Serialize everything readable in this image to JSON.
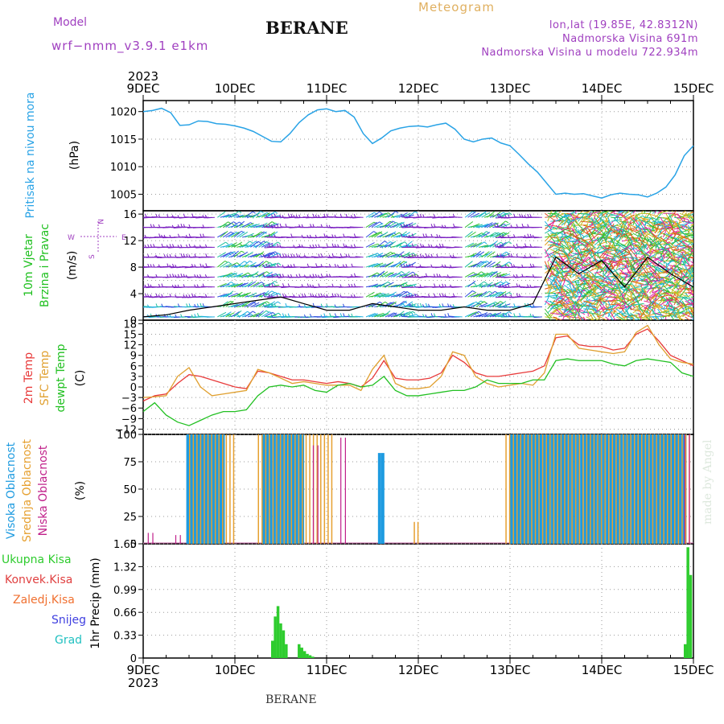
{
  "header": {
    "model_label": "Model",
    "model_name": "wrf−nmm_v3.9.1  e1km",
    "station": "BERANE",
    "meteogram": "Meteogram",
    "lonlat": "lon,lat (19.85E, 42.8312N)",
    "altitude": "Nadmorska Visina 691m",
    "model_altitude": "Nadmorska Visina u modelu 722.934m"
  },
  "footer": {
    "station": "BERANE",
    "credit": "made by Angel"
  },
  "colors": {
    "pressure": "#29a3e6",
    "temp2m": "#e83a3a",
    "sfc": "#e0a030",
    "dewpt": "#22c022",
    "high_cloud": "#1e9be0",
    "mid_cloud": "#e6a030",
    "low_cloud": "#c0208a",
    "precip": "#2ecc2e",
    "model_text": "#a040c0",
    "meteogram_text": "#e0b060",
    "wind_text": "#20c020",
    "snow": "#4040e0",
    "hail": "#20c0c0",
    "conv": "#e04040",
    "frozen": "#f07030"
  },
  "time_axis": {
    "top_year": "2023",
    "bottom_year": "2023",
    "ticks": [
      "9DEC",
      "10DEC",
      "11DEC",
      "12DEC",
      "13DEC",
      "14DEC",
      "15DEC"
    ]
  },
  "chart_data": [
    {
      "type": "line",
      "panel": "pressure",
      "ylabel_lines": [
        "Pritisak na nivou mora"
      ],
      "unit": "(hPa)",
      "ylim": [
        1002,
        1022
      ],
      "yticks": [
        "1005",
        "1010",
        "1015",
        "1020"
      ],
      "x": [
        9.0,
        9.1,
        9.2,
        9.3,
        9.4,
        9.5,
        9.6,
        9.7,
        9.8,
        9.9,
        10.0,
        10.1,
        10.2,
        10.3,
        10.4,
        10.5,
        10.6,
        10.7,
        10.8,
        10.9,
        11.0,
        11.1,
        11.2,
        11.3,
        11.4,
        11.5,
        11.6,
        11.7,
        11.8,
        11.9,
        12.0,
        12.1,
        12.2,
        12.3,
        12.4,
        12.5,
        12.6,
        12.7,
        12.8,
        12.9,
        13.0,
        13.1,
        13.2,
        13.3,
        13.4,
        13.5,
        13.6,
        13.7,
        13.8,
        13.9,
        14.0,
        14.1,
        14.2,
        14.3,
        14.4,
        14.5,
        14.6,
        14.7,
        14.8,
        14.9,
        15.0
      ],
      "series": [
        {
          "values": [
            1020,
            1020.2,
            1020.6,
            1019.8,
            1017.5,
            1017.6,
            1018.3,
            1018.2,
            1017.8,
            1017.7,
            1017.4,
            1017.0,
            1016.4,
            1015.5,
            1014.6,
            1014.5,
            1016.0,
            1018.0,
            1019.4,
            1020.3,
            1020.5,
            1020.0,
            1020.2,
            1019.0,
            1016.0,
            1014.2,
            1015.2,
            1016.5,
            1017.0,
            1017.3,
            1017.4,
            1017.2,
            1017.6,
            1017.9,
            1016.8,
            1015.0,
            1014.5,
            1015.0,
            1015.2,
            1014.3,
            1013.8,
            1012.2,
            1010.5,
            1009.0,
            1007.0,
            1005.0,
            1005.2,
            1005.0,
            1005.1,
            1004.7,
            1004.3,
            1004.9,
            1005.2,
            1005.0,
            1004.9,
            1004.5,
            1005.2,
            1006.3,
            1008.5,
            1012.0,
            1013.8
          ]
        }
      ]
    },
    {
      "type": "line",
      "panel": "wind",
      "ylabel_lines": [
        "10m Vjetar",
        "Brzina i Pravac"
      ],
      "unit": "(m/s)",
      "direction_key": [
        "N",
        "E",
        "W",
        "S"
      ],
      "ylim": [
        0,
        16.5
      ],
      "yticks": [
        "0",
        "4",
        "8",
        "12",
        "16"
      ],
      "x": [
        9.0,
        9.25,
        9.5,
        9.75,
        10.0,
        10.25,
        10.5,
        10.75,
        11.0,
        11.25,
        11.5,
        11.75,
        12.0,
        12.25,
        12.5,
        12.75,
        13.0,
        13.25,
        13.5,
        13.75,
        14.0,
        14.25,
        14.5,
        14.75,
        15.0
      ],
      "series": [
        {
          "values": [
            0.5,
            0.8,
            1.5,
            2.0,
            2.5,
            3.0,
            3.5,
            2.5,
            1.5,
            1.5,
            2.5,
            2.0,
            1.5,
            1.5,
            2.0,
            1.5,
            1.5,
            2.5,
            9.5,
            7.0,
            9.0,
            5.0,
            9.5,
            7.0,
            5.0
          ]
        }
      ]
    },
    {
      "type": "line",
      "panel": "temperature",
      "ylabel_lines": [
        "2m Temp",
        "SFC Temp",
        "dewpt Temp"
      ],
      "unit": "(C)",
      "ylim": [
        -12,
        18
      ],
      "yticks": [
        "−12",
        "−9",
        "−6",
        "−3",
        "0",
        "3",
        "6",
        "9",
        "12",
        "15",
        "18"
      ],
      "x": [
        9.0,
        9.125,
        9.25,
        9.375,
        9.5,
        9.625,
        9.75,
        9.875,
        10.0,
        10.125,
        10.25,
        10.375,
        10.5,
        10.625,
        10.75,
        10.875,
        11.0,
        11.125,
        11.25,
        11.375,
        11.5,
        11.625,
        11.75,
        11.875,
        12.0,
        12.125,
        12.25,
        12.375,
        12.5,
        12.625,
        12.75,
        12.875,
        13.0,
        13.125,
        13.25,
        13.375,
        13.5,
        13.625,
        13.75,
        13.875,
        14.0,
        14.125,
        14.25,
        14.375,
        14.5,
        14.625,
        14.75,
        14.875,
        15.0
      ],
      "series": [
        {
          "name": "2m Temp",
          "values": [
            -4,
            -2.5,
            -2,
            1,
            3.5,
            3,
            2,
            1,
            0,
            -0.5,
            4.5,
            4,
            3,
            2,
            2,
            1.5,
            1,
            1.5,
            1,
            0,
            2.5,
            7.5,
            2.5,
            2,
            2,
            2.5,
            4,
            9,
            7,
            4,
            3,
            3,
            3.5,
            4,
            4.5,
            6,
            14,
            14.5,
            12,
            11.5,
            11.5,
            10.5,
            11,
            15,
            16.5,
            13,
            9,
            7.5,
            6
          ]
        },
        {
          "name": "SFC Temp",
          "values": [
            -3,
            -2.8,
            -2.5,
            3,
            5.5,
            0,
            -2.5,
            -2,
            -1.5,
            -1,
            5,
            4,
            2.5,
            1,
            1.5,
            1,
            0.5,
            0.5,
            0.5,
            -1,
            5,
            9,
            1,
            -0.5,
            -0.5,
            0,
            3,
            10,
            9,
            3,
            1,
            0,
            0.5,
            1,
            0.5,
            4,
            15,
            15,
            11,
            10.5,
            10,
            9.5,
            10,
            15.5,
            17.5,
            12,
            8,
            7,
            6.5
          ]
        },
        {
          "name": "dewpt Temp",
          "values": [
            -7,
            -4.5,
            -8,
            -10,
            -11,
            -9.5,
            -8,
            -7,
            -7,
            -6.5,
            -2.5,
            0,
            0.5,
            0,
            0.5,
            -1,
            -1.5,
            0.5,
            1,
            0,
            0.5,
            3,
            -1,
            -2.5,
            -2.5,
            -2,
            -1.5,
            -1,
            -1,
            0,
            2,
            1,
            1,
            1,
            2,
            2,
            7.5,
            8,
            7.5,
            7.5,
            7.5,
            6.5,
            6,
            7.5,
            8,
            7.5,
            7,
            4,
            3
          ]
        }
      ]
    },
    {
      "type": "bar",
      "panel": "cloud",
      "ylabel_lines": [
        "Visoka Oblacnost",
        "Srednja Oblacnost",
        "Niska Oblacnost"
      ],
      "unit": "(%)",
      "ylim": [
        0,
        100
      ],
      "yticks": [
        "0",
        "25",
        "50",
        "75",
        "100"
      ],
      "series": [
        {
          "name": "Visoka Oblacnost",
          "x_ranges": [
            [
              9.47,
              9.88
            ],
            [
              10.3,
              10.72
            ],
            [
              11.56,
              11.6
            ],
            [
              13.0,
              14.92
            ]
          ],
          "values": [
            100,
            100,
            83,
            100
          ]
        },
        {
          "name": "Srednja Oblacnost",
          "x_ranges": [
            [
              9.5,
              9.99
            ],
            [
              10.25,
              11.05
            ],
            [
              11.95,
              12.0
            ],
            [
              12.95,
              14.98
            ]
          ],
          "values": [
            100,
            100,
            20,
            100
          ]
        },
        {
          "name": "Niska Oblacnost",
          "x_ranges": [
            [
              9.05,
              9.1
            ],
            [
              9.35,
              9.4
            ],
            [
              10.85,
              10.9
            ],
            [
              11.15,
              11.2
            ],
            [
              14.9,
              14.95
            ]
          ],
          "values": [
            10,
            8,
            90,
            97,
            100
          ]
        }
      ]
    },
    {
      "type": "bar",
      "panel": "precip",
      "legend": [
        "Ukupna Kisa",
        "Konvek.Kisa",
        "Zaledj.Kisa",
        "Snijeg",
        "Grad"
      ],
      "unit": "1hr Precip (mm)",
      "ylim": [
        0,
        1.65
      ],
      "yticks": [
        "0",
        "0.33",
        "0.66",
        "0.99",
        "1.32",
        "1.65"
      ],
      "x": [
        10.41,
        10.44,
        10.47,
        10.5,
        10.53,
        10.56,
        10.7,
        10.73,
        10.76,
        10.79,
        10.82,
        10.85,
        14.91,
        14.94,
        14.97
      ],
      "series": [
        {
          "name": "Ukupna Kisa",
          "values": [
            0.25,
            0.6,
            0.75,
            0.5,
            0.4,
            0.2,
            0.2,
            0.15,
            0.1,
            0.06,
            0.04,
            0.02,
            0.2,
            1.6,
            1.2
          ]
        }
      ]
    }
  ]
}
